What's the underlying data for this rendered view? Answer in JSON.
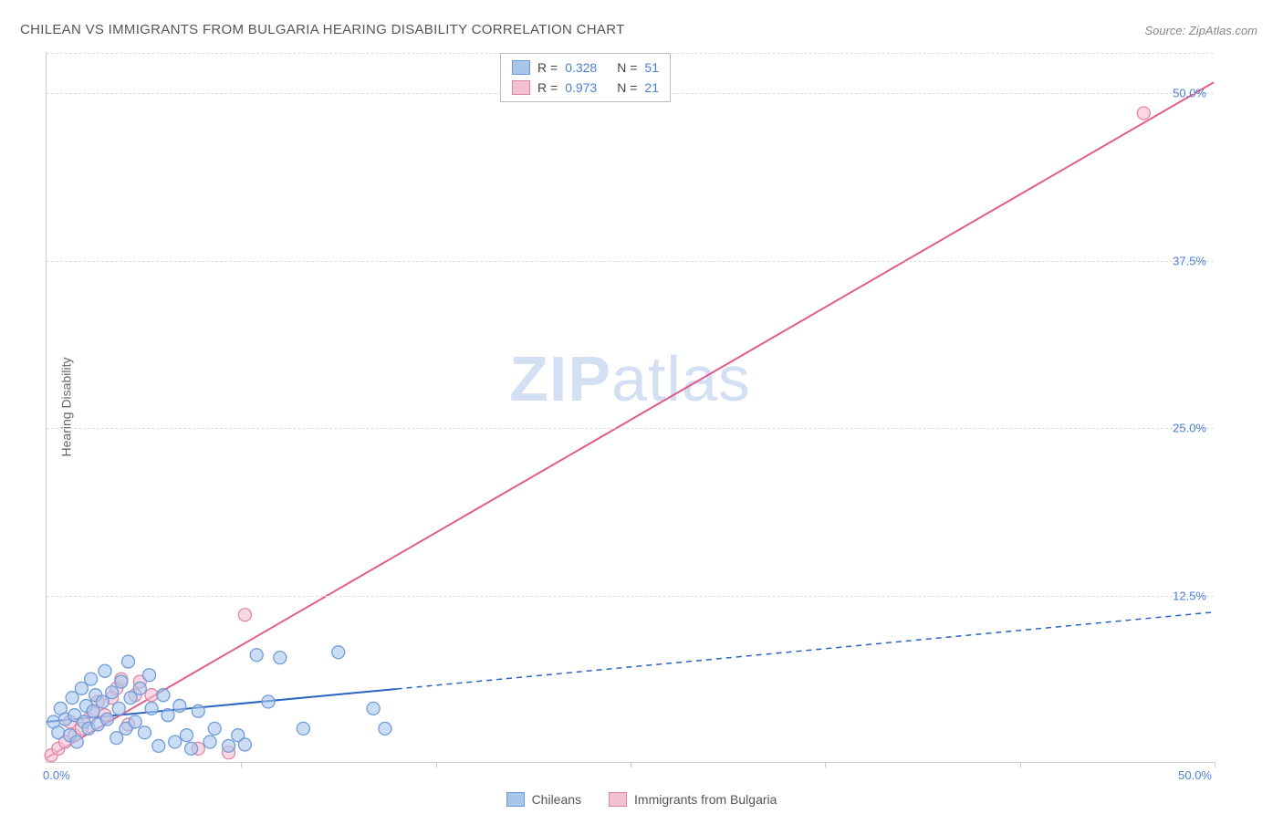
{
  "title": "CHILEAN VS IMMIGRANTS FROM BULGARIA HEARING DISABILITY CORRELATION CHART",
  "source": "Source: ZipAtlas.com",
  "y_axis_label": "Hearing Disability",
  "watermark_zip": "ZIP",
  "watermark_atlas": "atlas",
  "chart": {
    "type": "scatter",
    "xlim": [
      0,
      50
    ],
    "ylim": [
      0,
      53
    ],
    "y_ticks": [
      12.5,
      25.0,
      37.5,
      50.0
    ],
    "y_tick_labels": [
      "12.5%",
      "25.0%",
      "37.5%",
      "50.0%"
    ],
    "x_ticks": [
      0,
      8.33,
      16.67,
      25,
      33.33,
      41.67,
      50
    ],
    "origin_label": "0.0%",
    "xmax_label": "50.0%",
    "grid_color": "#dddddd",
    "axis_color": "#cccccc",
    "background_color": "#ffffff",
    "marker_radius": 7,
    "marker_stroke_width": 1.3,
    "series": [
      {
        "name": "Chileans",
        "fill_color": "#a8c6ec",
        "stroke_color": "#6f9cd8",
        "fill_opacity": 0.6,
        "line_color": "#2b63c0",
        "line_width": 2,
        "line_dash_after_x": 15,
        "r": "0.328",
        "n": "51",
        "regression": {
          "x1": 0,
          "y1": 3.0,
          "x2": 50,
          "y2": 11.2
        },
        "points": [
          [
            0.3,
            3.0
          ],
          [
            0.5,
            2.2
          ],
          [
            0.6,
            4.0
          ],
          [
            0.8,
            3.2
          ],
          [
            1.0,
            2.0
          ],
          [
            1.1,
            4.8
          ],
          [
            1.2,
            3.5
          ],
          [
            1.3,
            1.5
          ],
          [
            1.5,
            5.5
          ],
          [
            1.6,
            3.0
          ],
          [
            1.7,
            4.2
          ],
          [
            1.8,
            2.5
          ],
          [
            1.9,
            6.2
          ],
          [
            2.0,
            3.8
          ],
          [
            2.1,
            5.0
          ],
          [
            2.2,
            2.8
          ],
          [
            2.4,
            4.5
          ],
          [
            2.5,
            6.8
          ],
          [
            2.6,
            3.2
          ],
          [
            2.8,
            5.2
          ],
          [
            3.0,
            1.8
          ],
          [
            3.1,
            4.0
          ],
          [
            3.2,
            6.0
          ],
          [
            3.4,
            2.5
          ],
          [
            3.5,
            7.5
          ],
          [
            3.6,
            4.8
          ],
          [
            3.8,
            3.0
          ],
          [
            4.0,
            5.5
          ],
          [
            4.2,
            2.2
          ],
          [
            4.4,
            6.5
          ],
          [
            4.5,
            4.0
          ],
          [
            4.8,
            1.2
          ],
          [
            5.0,
            5.0
          ],
          [
            5.2,
            3.5
          ],
          [
            5.5,
            1.5
          ],
          [
            5.7,
            4.2
          ],
          [
            6.0,
            2.0
          ],
          [
            6.2,
            1.0
          ],
          [
            6.5,
            3.8
          ],
          [
            7.0,
            1.5
          ],
          [
            7.2,
            2.5
          ],
          [
            7.8,
            1.2
          ],
          [
            8.2,
            2.0
          ],
          [
            8.5,
            1.3
          ],
          [
            9.0,
            8.0
          ],
          [
            9.5,
            4.5
          ],
          [
            10.0,
            7.8
          ],
          [
            11.0,
            2.5
          ],
          [
            12.5,
            8.2
          ],
          [
            14.0,
            4.0
          ],
          [
            14.5,
            2.5
          ]
        ]
      },
      {
        "name": "Immigrants from Bulgaria",
        "fill_color": "#f4c0d0",
        "stroke_color": "#e386a5",
        "fill_opacity": 0.6,
        "line_color": "#e15e8a",
        "line_width": 2,
        "line_dash_after_x": null,
        "r": "0.973",
        "n": "21",
        "regression": {
          "x1": 0,
          "y1": 0.3,
          "x2": 50,
          "y2": 50.8
        },
        "points": [
          [
            0.2,
            0.5
          ],
          [
            0.5,
            1.0
          ],
          [
            0.8,
            1.5
          ],
          [
            1.0,
            3.0
          ],
          [
            1.2,
            2.0
          ],
          [
            1.5,
            2.5
          ],
          [
            1.8,
            3.2
          ],
          [
            2.0,
            3.8
          ],
          [
            2.2,
            4.5
          ],
          [
            2.5,
            3.5
          ],
          [
            2.8,
            4.8
          ],
          [
            3.0,
            5.5
          ],
          [
            3.2,
            6.2
          ],
          [
            3.5,
            2.8
          ],
          [
            3.8,
            5.0
          ],
          [
            4.0,
            6.0
          ],
          [
            4.5,
            5.0
          ],
          [
            6.5,
            1.0
          ],
          [
            7.8,
            0.7
          ],
          [
            8.5,
            11.0
          ],
          [
            47.0,
            48.5
          ]
        ]
      }
    ]
  },
  "legend_top": {
    "r_label": "R =",
    "n_label": "N ="
  },
  "legend_bottom": {
    "items": [
      "Chileans",
      "Immigrants from Bulgaria"
    ]
  }
}
